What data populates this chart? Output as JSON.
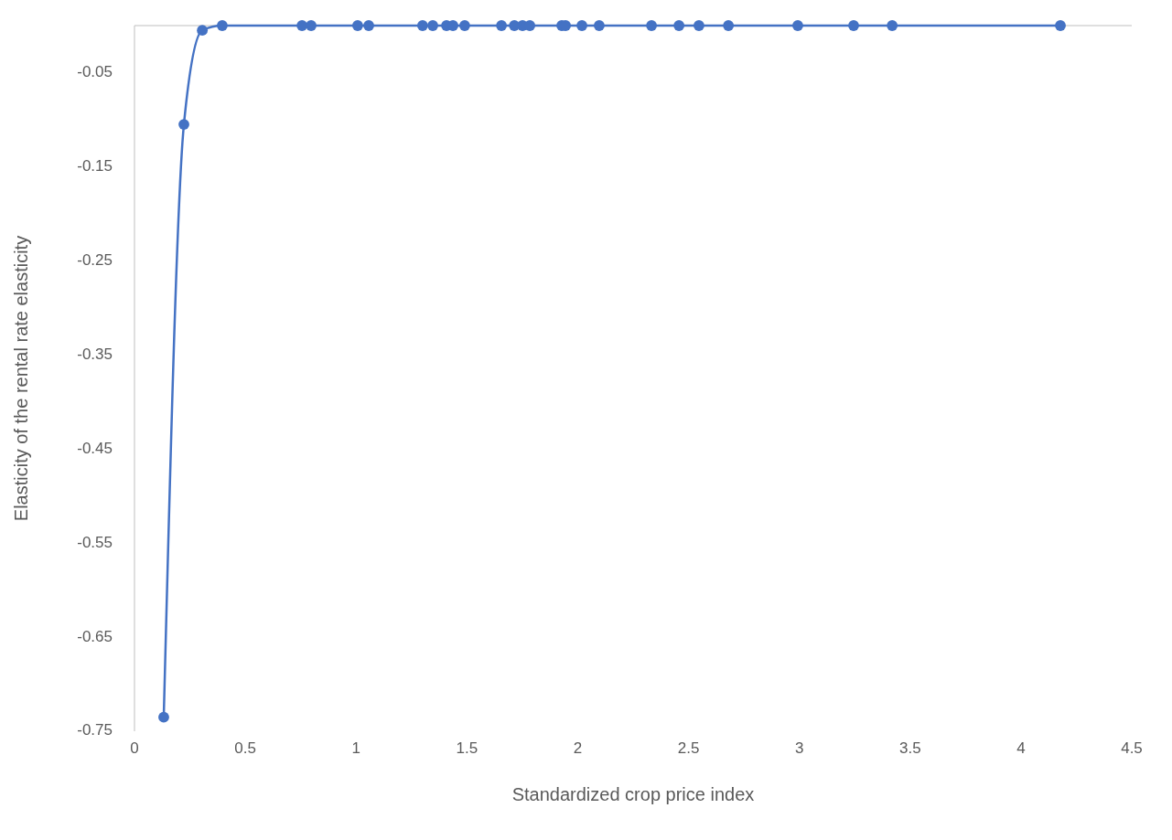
{
  "chart_data": {
    "type": "line",
    "xlabel": "Standardized crop price index",
    "ylabel": "Elasticity of the rental rate elasticity",
    "x": [
      0.132,
      0.223,
      0.306,
      0.396,
      0.756,
      0.797,
      1.007,
      1.057,
      1.3,
      1.346,
      1.408,
      1.437,
      1.49,
      1.656,
      1.714,
      1.751,
      1.784,
      1.928,
      1.945,
      2.019,
      2.097,
      2.333,
      2.457,
      2.547,
      2.68,
      2.993,
      3.245,
      3.419,
      4.178
    ],
    "series": [
      {
        "color": "#4472c4",
        "values": [
          -0.735,
          -0.105,
          -0.005,
          0,
          0,
          0,
          0,
          0,
          0,
          0,
          0,
          0,
          0,
          0,
          0,
          0,
          0,
          0,
          0,
          0,
          0,
          0,
          0,
          0,
          0,
          0,
          0,
          0,
          0
        ]
      }
    ],
    "xlim": [
      0,
      4.5
    ],
    "xticks": [
      0,
      0.5,
      1,
      1.5,
      2,
      2.5,
      3,
      3.5,
      4,
      4.5
    ],
    "ylim": [
      -0.75,
      0
    ],
    "yticks": [
      -0.05,
      -0.15,
      -0.25,
      -0.35,
      -0.45,
      -0.55,
      -0.65,
      -0.75
    ],
    "marker": "circle",
    "line_style": "solid",
    "grid": false
  }
}
